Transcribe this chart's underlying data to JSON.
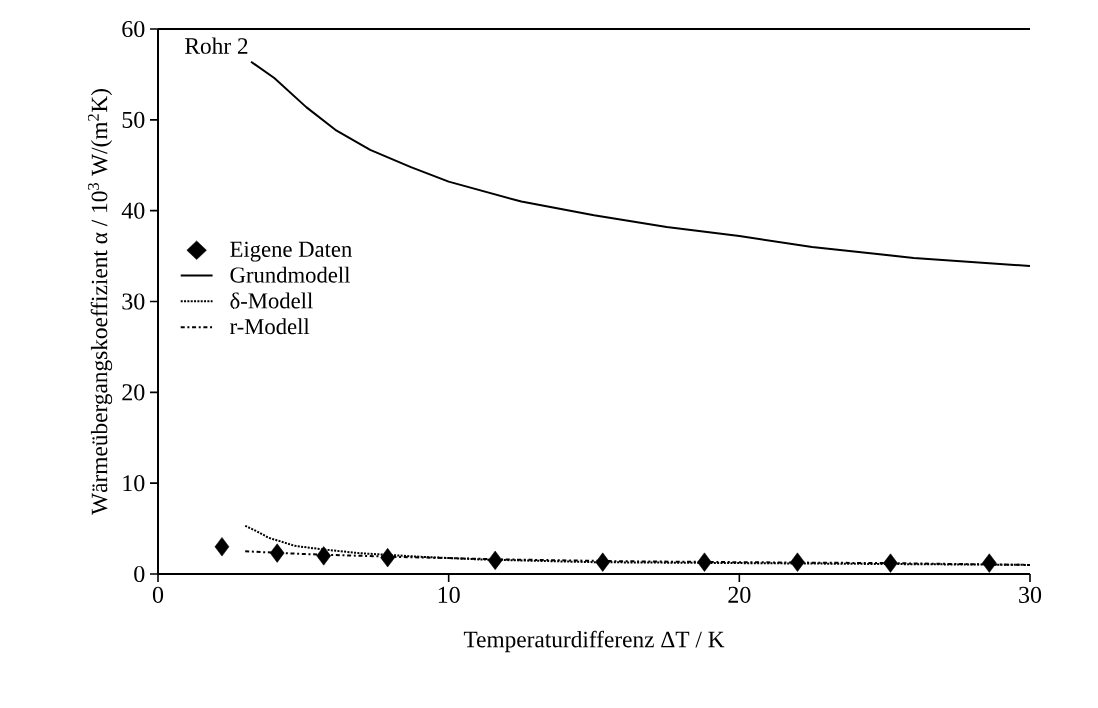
{
  "chart_data": {
    "type": "line",
    "xlabel": "Temperaturdifferenz ΔT  /  K",
    "ylabel": "Wärmeübergangskoeffizient α / 10$^{3}$ W/(m$^{2}$K)",
    "annotations": [
      "Rohr 2"
    ],
    "xlim": [
      0,
      30
    ],
    "ylim": [
      0,
      60
    ],
    "xticks": [
      0,
      10,
      20,
      30
    ],
    "yticks": [
      0,
      10,
      20,
      30,
      40,
      50,
      60
    ],
    "grid": false,
    "legend": "left",
    "series": [
      {
        "name": "Eigene Daten",
        "type": "scatter",
        "marker": "diamond",
        "color": "#000000",
        "x": [
          2.2,
          4.1,
          5.7,
          7.9,
          11.6,
          15.3,
          18.8,
          22.0,
          25.2,
          28.6
        ],
        "values": [
          3.0,
          2.3,
          2.0,
          1.8,
          1.5,
          1.3,
          1.3,
          1.3,
          1.2,
          1.2
        ]
      },
      {
        "name": "Grundmodell",
        "line_style": "solid",
        "color": "#000000",
        "x": [
          3.2,
          4.0,
          5.1,
          6.1,
          7.3,
          8.7,
          10,
          12.5,
          15,
          17.5,
          20,
          22.5,
          26,
          30
        ],
        "values": [
          56.4,
          54.6,
          51.4,
          48.9,
          46.7,
          44.8,
          43.2,
          41.0,
          39.5,
          38.2,
          37.2,
          36.0,
          34.8,
          33.9
        ]
      },
      {
        "name": "δ-Modell",
        "line_style": "dotted",
        "color": "#000000",
        "x": [
          3.0,
          3.4,
          3.8,
          4.7,
          5.7,
          6.9,
          9.0,
          11.1,
          15,
          20,
          25,
          30
        ],
        "values": [
          5.3,
          4.7,
          4.0,
          3.1,
          2.7,
          2.3,
          1.9,
          1.6,
          1.3,
          1.2,
          1.1,
          1.0
        ]
      },
      {
        "name": "r-Modell",
        "line_style": "dashdot",
        "color": "#000000",
        "x": [
          3.0,
          5,
          8,
          12,
          16,
          20,
          25,
          30
        ],
        "values": [
          2.5,
          2.2,
          1.9,
          1.6,
          1.4,
          1.3,
          1.2,
          1.0
        ]
      }
    ]
  }
}
